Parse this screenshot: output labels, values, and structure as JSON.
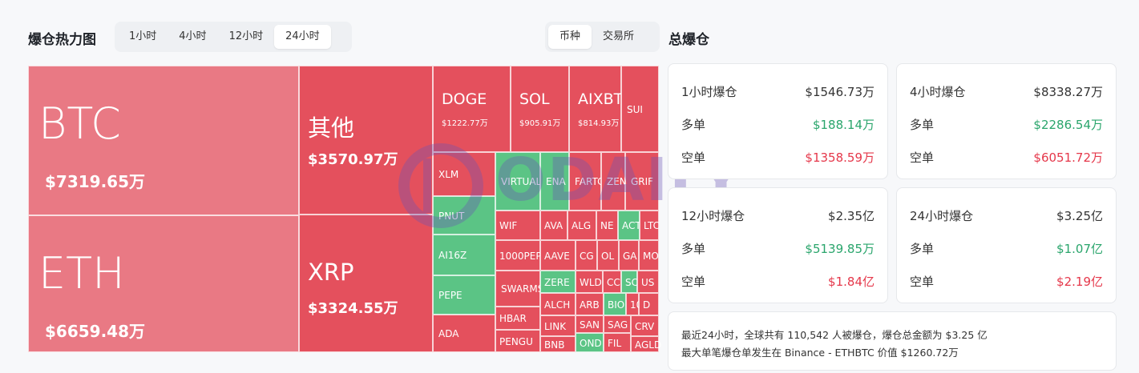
{
  "heatmap": {
    "title": "爆仓热力图",
    "time_tabs": [
      "1小时",
      "4小时",
      "12小时",
      "24小时"
    ],
    "active_time_tab": "24小时",
    "view_tabs": [
      "币种",
      "交易所"
    ],
    "active_view_tab": "币种",
    "watermark": "ODAILY",
    "colors": {
      "red": "#e4505d",
      "pink": "#e97984",
      "green": "#5bc485"
    },
    "cells": [
      {
        "name": "BTC",
        "value": "$7319.65万",
        "color": "pink"
      },
      {
        "name": "ETH",
        "value": "$6659.48万",
        "color": "pink"
      },
      {
        "name": "其他",
        "value": "$3570.97万",
        "color": "red"
      },
      {
        "name": "XRP",
        "value": "$3324.55万",
        "color": "red"
      },
      {
        "name": "DOGE",
        "value": "$1222.77万",
        "color": "red"
      },
      {
        "name": "SOL",
        "value": "$905.91万",
        "color": "red"
      },
      {
        "name": "AIXBT",
        "value": "$814.93万",
        "color": "red"
      },
      {
        "name": "SUI",
        "value": "",
        "color": "red"
      },
      {
        "name": "XLM",
        "value": "",
        "color": "red"
      },
      {
        "name": "PNUT",
        "value": "",
        "color": "green"
      },
      {
        "name": "AI16Z",
        "value": "",
        "color": "green"
      },
      {
        "name": "PEPE",
        "value": "",
        "color": "green"
      },
      {
        "name": "ADA",
        "value": "",
        "color": "red"
      },
      {
        "name": "VIRTUAL",
        "value": "",
        "color": "green"
      },
      {
        "name": "ENA",
        "value": "",
        "color": "green"
      },
      {
        "name": "FARTC",
        "value": "",
        "color": "red"
      },
      {
        "name": "ZEN",
        "value": "",
        "color": "red"
      },
      {
        "name": "GRIF",
        "value": "",
        "color": "red"
      },
      {
        "name": "WIF",
        "value": "",
        "color": "red"
      },
      {
        "name": "AVA",
        "value": "",
        "color": "red"
      },
      {
        "name": "ALG",
        "value": "",
        "color": "red"
      },
      {
        "name": "NE",
        "value": "",
        "color": "red"
      },
      {
        "name": "ACT",
        "value": "",
        "color": "green"
      },
      {
        "name": "LTC",
        "value": "",
        "color": "red"
      },
      {
        "name": "1000PEP",
        "value": "",
        "color": "red"
      },
      {
        "name": "AAVE",
        "value": "",
        "color": "red"
      },
      {
        "name": "CG",
        "value": "",
        "color": "red"
      },
      {
        "name": "OL",
        "value": "",
        "color": "red"
      },
      {
        "name": "GA",
        "value": "",
        "color": "red"
      },
      {
        "name": "MO",
        "value": "",
        "color": "red"
      },
      {
        "name": "SWARMS",
        "value": "",
        "color": "red"
      },
      {
        "name": "ZERE",
        "value": "",
        "color": "green"
      },
      {
        "name": "WLD",
        "value": "",
        "color": "red"
      },
      {
        "name": "CC",
        "value": "",
        "color": "red"
      },
      {
        "name": "SC",
        "value": "",
        "color": "green"
      },
      {
        "name": "US",
        "value": "",
        "color": "red"
      },
      {
        "name": "ALCH",
        "value": "",
        "color": "red"
      },
      {
        "name": "ARB",
        "value": "",
        "color": "red"
      },
      {
        "name": "BIO",
        "value": "",
        "color": "green"
      },
      {
        "name": "10",
        "value": "",
        "color": "red"
      },
      {
        "name": "D",
        "value": "",
        "color": "red"
      },
      {
        "name": "HBAR",
        "value": "",
        "color": "red"
      },
      {
        "name": "LINK",
        "value": "",
        "color": "red"
      },
      {
        "name": "SAN",
        "value": "",
        "color": "red"
      },
      {
        "name": "SAG",
        "value": "",
        "color": "red"
      },
      {
        "name": "CRV",
        "value": "",
        "color": "red"
      },
      {
        "name": "PENGU",
        "value": "",
        "color": "red"
      },
      {
        "name": "BNB",
        "value": "",
        "color": "red"
      },
      {
        "name": "OND",
        "value": "",
        "color": "green"
      },
      {
        "name": "FIL",
        "value": "",
        "color": "red"
      },
      {
        "name": "AGLD",
        "value": "",
        "color": "red"
      }
    ]
  },
  "summary": {
    "title": "总爆仓",
    "long_label": "多单",
    "short_label": "空单",
    "cards": [
      {
        "label": "1小时爆仓",
        "total": "$1546.73万",
        "long": "$188.14万",
        "short": "$1358.59万"
      },
      {
        "label": "4小时爆仓",
        "total": "$8338.27万",
        "long": "$2286.54万",
        "short": "$6051.72万"
      },
      {
        "label": "12小时爆仓",
        "total": "$2.35亿",
        "long": "$5139.85万",
        "short": "$1.84亿"
      },
      {
        "label": "24小时爆仓",
        "total": "$3.25亿",
        "long": "$1.07亿",
        "short": "$2.19亿"
      }
    ],
    "note_line1": "最近24小时，全球共有 110,542 人被爆仓，爆仓总金额为 $3.25 亿",
    "note_line2": "最大单笔爆仓单发生在 Binance - ETHBTC 价值 $1260.72万"
  }
}
